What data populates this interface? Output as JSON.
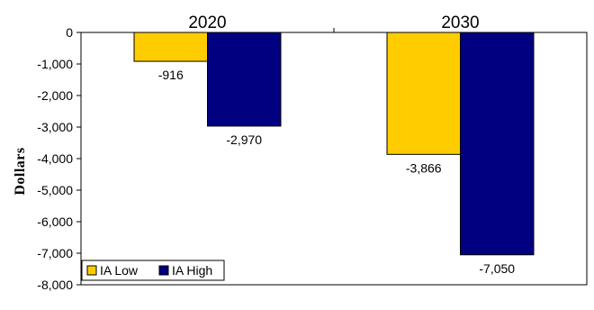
{
  "chart_data": {
    "type": "bar",
    "categories": [
      "2020",
      "2030"
    ],
    "series": [
      {
        "name": "IA Low",
        "values": [
          -916,
          -3866
        ],
        "color": "#FFCC00"
      },
      {
        "name": "IA High",
        "values": [
          -2970,
          -7050
        ],
        "color": "#000080"
      }
    ],
    "data_labels": [
      [
        "-916",
        "-3,866"
      ],
      [
        "-2,970",
        "-7,050"
      ]
    ],
    "ylabel": "Dollars",
    "ylim": [
      -8000,
      0
    ],
    "yticks": [
      0,
      -1000,
      -2000,
      -3000,
      -4000,
      -5000,
      -6000,
      -7000,
      -8000
    ],
    "ytick_labels": [
      "0",
      "-1,000",
      "-2,000",
      "-3,000",
      "-4,000",
      "-5,000",
      "-6,000",
      "-7,000",
      "-8,000"
    ],
    "category_axis_position": "top",
    "grid": false,
    "legend_position": "bottom-left"
  }
}
